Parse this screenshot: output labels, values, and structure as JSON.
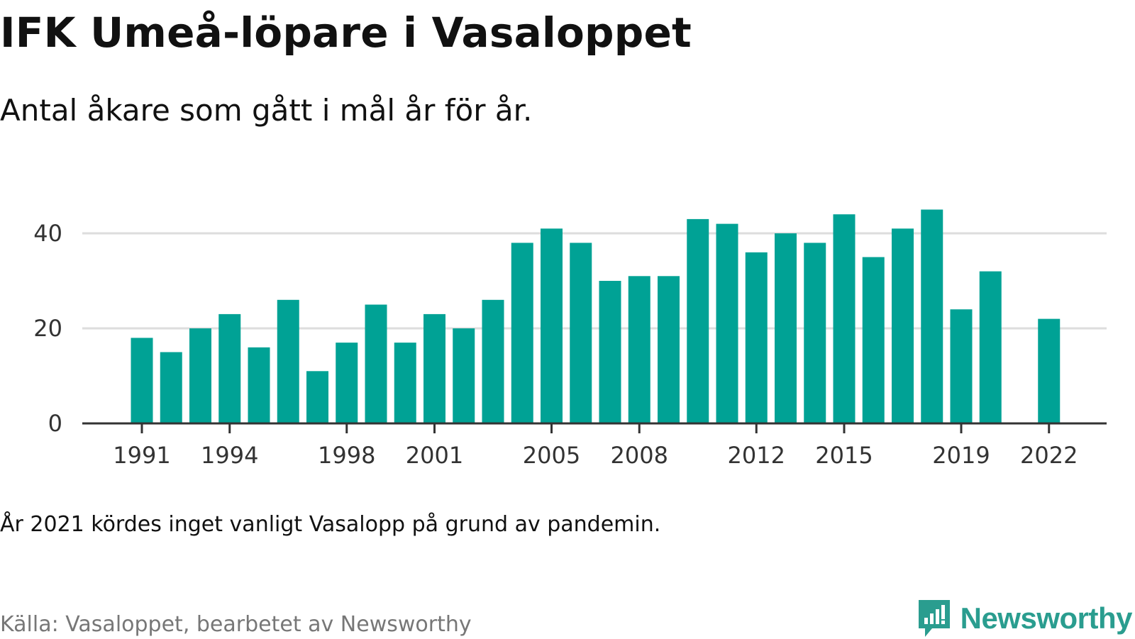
{
  "title": "IFK Umeå-löpare i Vasaloppet",
  "subtitle": "Antal åkare som gått i mål år för år.",
  "note": "År 2021 kördes inget vanligt Vasalopp på grund av pandemin.",
  "source": "Källa: Vasaloppet, bearbetet av Newsworthy",
  "logo": {
    "text": "Newsworthy",
    "icon": "newsworthy-logo-icon",
    "color": "#2a9d8f"
  },
  "chart_data": {
    "type": "bar",
    "x": [
      1991,
      1992,
      1993,
      1994,
      1995,
      1996,
      1997,
      1998,
      1999,
      2000,
      2001,
      2002,
      2003,
      2004,
      2005,
      2006,
      2007,
      2008,
      2009,
      2010,
      2011,
      2012,
      2013,
      2014,
      2015,
      2016,
      2017,
      2018,
      2019,
      2020,
      2021,
      2022
    ],
    "values": [
      18,
      15,
      20,
      23,
      16,
      26,
      11,
      17,
      25,
      17,
      23,
      20,
      26,
      38,
      41,
      38,
      30,
      31,
      31,
      43,
      42,
      36,
      40,
      38,
      44,
      35,
      41,
      45,
      24,
      32,
      null,
      22
    ],
    "x_tick_labels": [
      "1991",
      "1994",
      "1998",
      "2001",
      "2005",
      "2008",
      "2012",
      "2015",
      "2019",
      "2022"
    ],
    "y_ticks": [
      0,
      20,
      40
    ],
    "ylim": [
      0,
      48
    ],
    "xlabel": "",
    "ylabel": "",
    "grid": true,
    "legend": "none",
    "bar_color": "#00a295",
    "title": "IFK Umeå-löpare i Vasaloppet",
    "subtitle": "Antal åkare som gått i mål år för år."
  }
}
